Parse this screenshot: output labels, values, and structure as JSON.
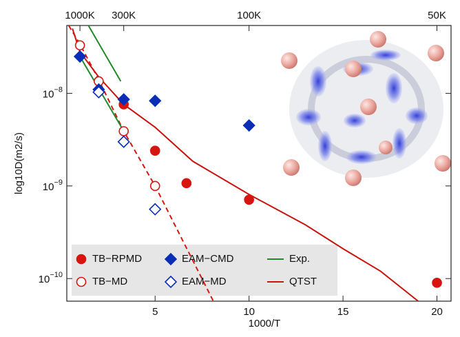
{
  "chart_data": {
    "type": "scatter",
    "x_label": "1000/T",
    "y_label": "log10D(m2/s)",
    "xlim": [
      0.3,
      20.75
    ],
    "xticks": [
      5,
      10,
      15,
      20
    ],
    "x2ticks": [
      {
        "value": 1,
        "label": "1000K"
      },
      {
        "value": 3.33,
        "label": "300K"
      },
      {
        "value": 10,
        "label": "100K"
      },
      {
        "value": 20,
        "label": "50K"
      }
    ],
    "ylim": [
      5.7e-11,
      5.4e-08
    ],
    "log_y": true,
    "yticks": [
      {
        "value": 1e-08,
        "label": "10−8"
      },
      {
        "value": 1e-09,
        "label": "10−9"
      },
      {
        "value": 1e-10,
        "label": "10−10"
      }
    ],
    "legend": "lower left",
    "series": [
      {
        "name": "TB−RPMD",
        "marker": "circle",
        "color": "#d7140f",
        "x": [
          3.33,
          5,
          6.67,
          10,
          20
        ],
        "values": [
          7.6e-09,
          2.4e-09,
          1.07e-09,
          7.1e-10,
          9e-11
        ]
      },
      {
        "name": "TB−MD",
        "marker": "circle-open",
        "color": "#d7140f",
        "x": [
          1,
          2,
          3.33,
          5
        ],
        "values": [
          3.3e-08,
          1.35e-08,
          3.9e-09,
          1e-09
        ],
        "fit": {
          "x": [
            0.4,
            1,
            2,
            3.33,
            5,
            8.1
          ],
          "values": [
            5.4e-08,
            3.4e-08,
            1.4e-08,
            3.9e-09,
            1e-09,
            5.7e-11
          ]
        }
      },
      {
        "name": "EAM−CMD",
        "marker": "diamond",
        "color": "#0a2db8",
        "x": [
          1,
          2,
          3.33,
          5,
          10
        ],
        "values": [
          2.5e-08,
          1.1e-08,
          8.6e-09,
          8.3e-09,
          4.5e-09
        ]
      },
      {
        "name": "EAM−MD",
        "marker": "diamond-open",
        "color": "#0a2db8",
        "x": [
          2,
          3.33,
          5
        ],
        "values": [
          1.03e-08,
          3e-09,
          5.6e-10
        ]
      },
      {
        "name": "Exp.",
        "marker": "line",
        "color": "#1f8a2a",
        "x": [
          1.45,
          3.17,
          3.2,
          1.0,
          3.3
        ],
        "values": [
          5.4e-08,
          1.35e-08,
          null,
          2.5e-08,
          4e-09
        ]
      },
      {
        "name": "QTST",
        "marker": "line",
        "color": "#c8140f",
        "x": [
          0.6,
          1,
          2,
          3.33,
          5,
          7,
          10,
          13,
          15,
          17,
          19
        ],
        "values": [
          5e-08,
          2.8e-08,
          1.5e-08,
          7.6e-09,
          4.3e-09,
          1.85e-09,
          8.1e-10,
          3.8e-10,
          2.1e-10,
          1.2e-10,
          5.7e-11
        ]
      }
    ]
  }
}
